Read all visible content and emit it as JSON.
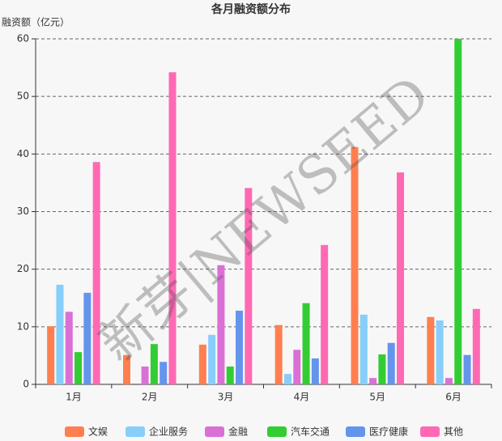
{
  "chart_data": {
    "type": "bar",
    "title": "各月融资额分布",
    "y_label": "融资额（亿元）",
    "categories": [
      "1月",
      "2月",
      "3月",
      "4月",
      "5月",
      "6月"
    ],
    "series": [
      {
        "name": "文娱",
        "color": "#ff7f50",
        "values": [
          10.1,
          5.1,
          6.9,
          10.3,
          41.2,
          11.7
        ]
      },
      {
        "name": "企业服务",
        "color": "#87cefa",
        "values": [
          17.3,
          0,
          8.6,
          1.8,
          12.1,
          11.1
        ]
      },
      {
        "name": "金融",
        "color": "#da70d6",
        "values": [
          12.6,
          3.1,
          20.7,
          6.0,
          1.1,
          1.1
        ]
      },
      {
        "name": "汽车交通",
        "color": "#32cd32",
        "values": [
          5.6,
          7.0,
          3.1,
          14.1,
          5.2,
          60
        ]
      },
      {
        "name": "医疗健康",
        "color": "#6495ed",
        "values": [
          15.9,
          3.9,
          12.8,
          4.5,
          7.2,
          5.1
        ]
      },
      {
        "name": "其他",
        "color": "#ff69b4",
        "values": [
          38.6,
          54.2,
          34.1,
          24.2,
          36.8,
          13.1
        ]
      }
    ],
    "ylim": [
      0,
      60
    ],
    "yticks": [
      0,
      10,
      20,
      30,
      40,
      50,
      60
    ],
    "grid": true,
    "legend": "bottom",
    "watermark": "新芽|NEWSEED"
  }
}
